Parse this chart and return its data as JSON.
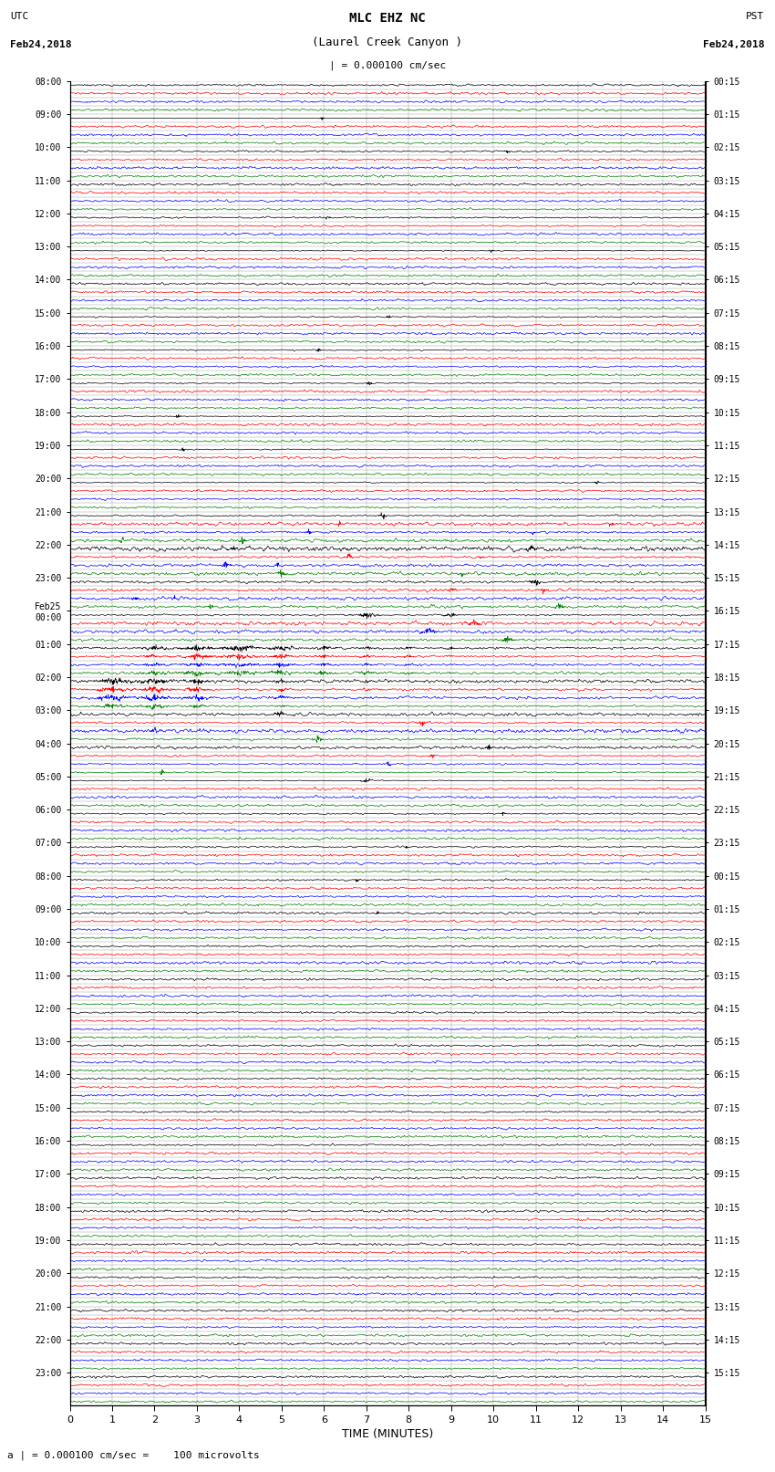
{
  "title_line1": "MLC EHZ NC",
  "title_line2": "(Laurel Creek Canyon )",
  "scale_text": "| = 0.000100 cm/sec",
  "left_label_top": "UTC",
  "left_label_date": "Feb24,2018",
  "right_label_top": "PST",
  "right_label_date": "Feb24,2018",
  "bottom_label": "TIME (MINUTES)",
  "bottom_note": "a | = 0.000100 cm/sec =    100 microvolts",
  "xlabel_ticks": [
    0,
    1,
    2,
    3,
    4,
    5,
    6,
    7,
    8,
    9,
    10,
    11,
    12,
    13,
    14,
    15
  ],
  "left_times_labeled": {
    "0": "08:00",
    "4": "09:00",
    "8": "10:00",
    "12": "11:00",
    "16": "12:00",
    "20": "13:00",
    "24": "14:00",
    "28": "15:00",
    "32": "16:00",
    "36": "17:00",
    "40": "18:00",
    "44": "19:00",
    "48": "20:00",
    "52": "21:00",
    "56": "22:00",
    "60": "23:00",
    "64": "Feb25\n00:00",
    "68": "01:00",
    "72": "02:00",
    "76": "03:00",
    "80": "04:00",
    "84": "05:00",
    "88": "06:00",
    "92": "07:00",
    "96": "08:00",
    "100": "09:00",
    "104": "10:00",
    "108": "11:00",
    "112": "12:00",
    "116": "13:00",
    "120": "14:00",
    "124": "15:00",
    "128": "16:00",
    "132": "17:00",
    "136": "18:00",
    "140": "19:00",
    "144": "20:00",
    "148": "21:00",
    "152": "22:00",
    "156": "23:00"
  },
  "right_times_labeled": {
    "0": "00:15",
    "4": "01:15",
    "8": "02:15",
    "12": "03:15",
    "16": "04:15",
    "20": "05:15",
    "24": "06:15",
    "28": "07:15",
    "32": "08:15",
    "36": "09:15",
    "40": "10:15",
    "44": "11:15",
    "48": "12:15",
    "52": "13:15",
    "56": "14:15",
    "60": "15:15",
    "64": "16:15",
    "68": "17:15",
    "72": "18:15",
    "76": "19:15",
    "80": "20:15",
    "84": "21:15",
    "88": "22:15",
    "92": "23:15",
    "96": "00:15",
    "100": "01:15",
    "104": "02:15",
    "108": "03:15",
    "112": "04:15",
    "116": "05:15",
    "120": "06:15",
    "124": "07:15",
    "128": "08:15",
    "132": "09:15",
    "136": "10:15",
    "140": "11:15",
    "144": "12:15",
    "148": "13:15",
    "152": "14:15",
    "156": "15:15"
  },
  "bg_color": "#ffffff",
  "trace_color_cycle": [
    "black",
    "red",
    "blue",
    "green"
  ],
  "grid_color": "#999999",
  "figsize": [
    8.5,
    16.13
  ],
  "dpi": 100,
  "total_rows": 160,
  "n_points": 1800
}
